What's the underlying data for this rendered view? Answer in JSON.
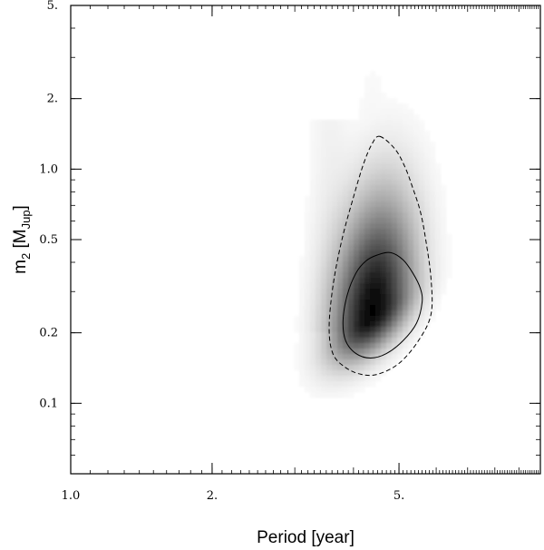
{
  "chart_data": {
    "type": "heatmap",
    "title": "",
    "xlabel": "Period [year]",
    "ylabel": "m2 [MJup]",
    "ylabel_parts": {
      "base": "m",
      "sub": "2",
      "bracket_open": " [M",
      "unit_sub": "Jup",
      "bracket_close": "]"
    },
    "x_scale": "log",
    "y_scale": "log",
    "xlim": [
      1.0,
      10.0
    ],
    "ylim": [
      0.05,
      5.0
    ],
    "x_ticks": [
      {
        "value": 1.0,
        "label": "1.0"
      },
      {
        "value": 2.0,
        "label": "2."
      },
      {
        "value": 5.0,
        "label": "5."
      }
    ],
    "y_ticks": [
      {
        "value": 0.1,
        "label": "0.1"
      },
      {
        "value": 0.2,
        "label": "0.2"
      },
      {
        "value": 0.5,
        "label": "0.5"
      },
      {
        "value": 1.0,
        "label": "1.0"
      },
      {
        "value": 2.0,
        "label": "2."
      },
      {
        "value": 5.0,
        "label": "5."
      }
    ],
    "density_peak": {
      "period": 4.4,
      "mass": 0.24
    },
    "contours": [
      {
        "name": "",
        "style": "solid",
        "points": [
          [
            4.5,
            0.43
          ],
          [
            4.8,
            0.44
          ],
          [
            5.1,
            0.41
          ],
          [
            5.35,
            0.36
          ],
          [
            5.55,
            0.31
          ],
          [
            5.6,
            0.27
          ],
          [
            5.45,
            0.22
          ],
          [
            5.1,
            0.185
          ],
          [
            4.7,
            0.163
          ],
          [
            4.35,
            0.156
          ],
          [
            4.05,
            0.163
          ],
          [
            3.85,
            0.185
          ],
          [
            3.8,
            0.225
          ],
          [
            3.88,
            0.29
          ],
          [
            4.05,
            0.36
          ],
          [
            4.25,
            0.405
          ]
        ]
      },
      {
        "name": "",
        "style": "dashed",
        "points": [
          [
            4.55,
            1.38
          ],
          [
            4.9,
            1.22
          ],
          [
            5.15,
            1.02
          ],
          [
            5.35,
            0.83
          ],
          [
            5.55,
            0.66
          ],
          [
            5.7,
            0.5
          ],
          [
            5.85,
            0.34
          ],
          [
            5.85,
            0.24
          ],
          [
            5.5,
            0.185
          ],
          [
            5.0,
            0.148
          ],
          [
            4.5,
            0.133
          ],
          [
            4.15,
            0.133
          ],
          [
            3.85,
            0.142
          ],
          [
            3.62,
            0.162
          ],
          [
            3.55,
            0.21
          ],
          [
            3.62,
            0.32
          ],
          [
            3.78,
            0.5
          ],
          [
            4.0,
            0.76
          ],
          [
            4.2,
            1.05
          ],
          [
            4.38,
            1.28
          ]
        ]
      }
    ],
    "grid": false,
    "legend": "none"
  }
}
